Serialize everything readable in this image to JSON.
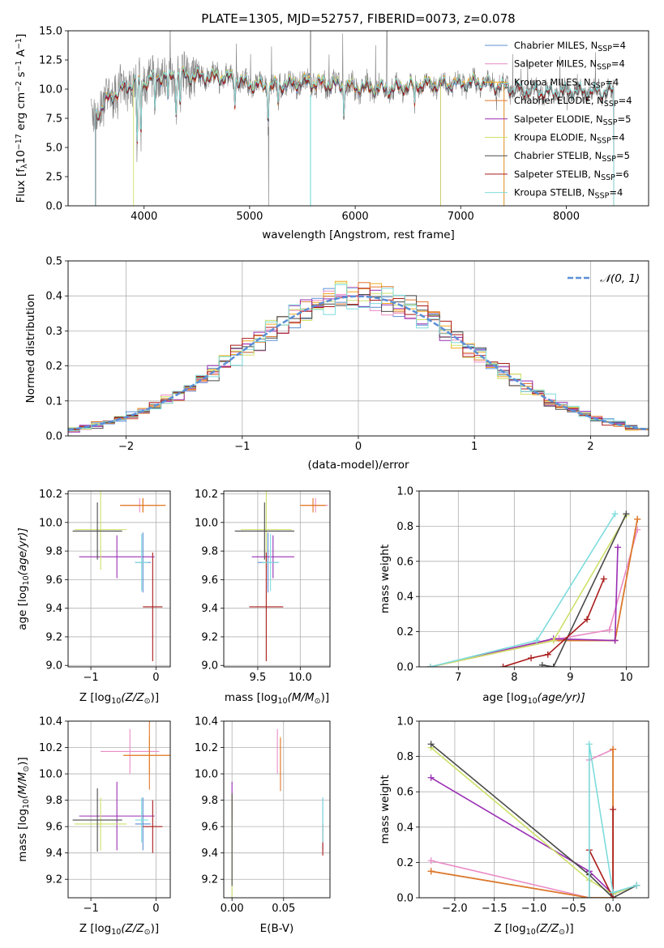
{
  "colors": {
    "Chabrier MILES": "#5b8fd6",
    "Salpeter MILES": "#e98cc6",
    "Kroupa MILES": "#f2a81d",
    "Chabrier ELODIE": "#e0772c",
    "Salpeter ELODIE": "#9a2fb4",
    "Kroupa ELODIE": "#cfe06a",
    "Chabrier STELIB": "#4a4a4a",
    "Salpeter STELIB": "#aa1a1a",
    "Kroupa STELIB": "#7fdcdc",
    "Normal": "#5b8fd6",
    "observed": "#808080"
  },
  "chart_data": [
    {
      "id": "spectrum",
      "type": "line",
      "title": "PLATE=1305, MJD=52757, FIBERID=0073, z=0.078",
      "xlabel": "wavelength [Angstrom, rest frame]",
      "ylabel_main": "Flux [f",
      "ylabel_sub": "λ",
      "ylabel_rest1": "10",
      "ylabel_sup1": "−17",
      "ylabel_rest2": " erg cm",
      "ylabel_sup2": "−2",
      "ylabel_rest3": " s",
      "ylabel_sup3": "−1",
      "ylabel_rest4": " A",
      "ylabel_sup4": "−1",
      "ylabel_end": "]",
      "xlim": [
        3280,
        8780
      ],
      "ylim": [
        0,
        15
      ],
      "xticks": [
        "4000",
        "5000",
        "6000",
        "7000",
        "8000"
      ],
      "xtick_values": [
        4000,
        5000,
        6000,
        7000,
        8000
      ],
      "yticks": [
        "0.0",
        "2.5",
        "5.0",
        "7.5",
        "10.0",
        "12.5",
        "15.0"
      ],
      "ytick_values": [
        0,
        2.5,
        5,
        7.5,
        10,
        12.5,
        15
      ],
      "legend": [
        {
          "name": "Chabrier MILES",
          "n": "4"
        },
        {
          "name": "Salpeter MILES",
          "n": "4"
        },
        {
          "name": "Kroupa MILES",
          "n": "4"
        },
        {
          "name": "Chabrier ELODIE",
          "n": "4"
        },
        {
          "name": "Salpeter ELODIE",
          "n": "5"
        },
        {
          "name": "Kroupa ELODIE",
          "n": "4"
        },
        {
          "name": "Chabrier STELIB",
          "n": "5"
        },
        {
          "name": "Salpeter STELIB",
          "n": "6"
        },
        {
          "name": "Kroupa STELIB",
          "n": "4"
        }
      ],
      "legend_sub": "SSP",
      "legend_prefix": "N",
      "continuum": [
        [
          3500,
          7.9
        ],
        [
          3650,
          9.2
        ],
        [
          3750,
          9.7
        ],
        [
          3900,
          10.6
        ],
        [
          4000,
          10.5
        ],
        [
          4100,
          11.0
        ],
        [
          4300,
          11.2
        ],
        [
          4500,
          11.1
        ],
        [
          4800,
          11.0
        ],
        [
          5000,
          10.4
        ],
        [
          5200,
          10.2
        ],
        [
          5500,
          10.6
        ],
        [
          5800,
          10.4
        ],
        [
          6000,
          10.2
        ],
        [
          6300,
          10.0
        ],
        [
          6600,
          10.4
        ],
        [
          6900,
          10.4
        ],
        [
          7200,
          10.6
        ],
        [
          7500,
          10.0
        ],
        [
          7800,
          9.7
        ],
        [
          8100,
          9.8
        ],
        [
          8450,
          9.8
        ]
      ]
    },
    {
      "id": "residuals",
      "type": "histogram",
      "xlabel": "(data-model)/error",
      "ylabel": "Normed distribution",
      "xlim": [
        -2.5,
        2.5
      ],
      "ylim": [
        0,
        0.5
      ],
      "xticks": [
        "−2",
        "−1",
        "0",
        "1",
        "2"
      ],
      "xtick_values": [
        -2,
        -1,
        0,
        1,
        2
      ],
      "yticks": [
        "0.0",
        "0.1",
        "0.2",
        "0.3",
        "0.4",
        "0.5"
      ],
      "ytick_values": [
        0,
        0.1,
        0.2,
        0.3,
        0.4,
        0.5
      ],
      "bin_width": 0.1,
      "legend": "𝒩(0, 1)"
    },
    {
      "id": "age_vs_Z",
      "type": "scatter",
      "xlabel": "Z [log",
      "xlabel_sub": "10",
      "xlabel_rest": "(Z/Z",
      "xlabel_sub2": "⊙",
      "xlabel_end": ")]",
      "ylabel": "age  [log",
      "ylabel_sub": "10",
      "ylabel_rest": "(age/yr)]",
      "xlim": [
        -1.35,
        0.22
      ],
      "ylim": [
        8.99,
        10.22
      ],
      "xticks": [
        "−1",
        "0"
      ],
      "xtick_values": [
        -1,
        0
      ],
      "yticks": [
        "9.0",
        "9.2",
        "9.4",
        "9.6",
        "9.8",
        "10.0",
        "10.2"
      ],
      "ytick_values": [
        9.0,
        9.2,
        9.4,
        9.6,
        9.8,
        10.0,
        10.2
      ],
      "points": [
        {
          "s": "Chabrier MILES",
          "x": -0.2,
          "y": 9.72,
          "xe": 0.12,
          "ye": 0.21
        },
        {
          "s": "Salpeter MILES",
          "x": -0.25,
          "y": 10.12,
          "xe": 0.3,
          "ye": 0.05
        },
        {
          "s": "Kroupa MILES",
          "x": -0.2,
          "y": 10.12,
          "xe": 0.35,
          "ye": 0.05
        },
        {
          "s": "Chabrier ELODIE",
          "x": -0.2,
          "y": 10.12,
          "xe": 0.35,
          "ye": 0.05
        },
        {
          "s": "Salpeter ELODIE",
          "x": -0.6,
          "y": 9.76,
          "xe": 0.58,
          "ye": 0.15
        },
        {
          "s": "Kroupa ELODIE",
          "x": -0.85,
          "y": 9.95,
          "xe": 0.4,
          "ye": 0.28
        },
        {
          "s": "Chabrier STELIB",
          "x": -0.9,
          "y": 9.94,
          "xe": 0.38,
          "ye": 0.2
        },
        {
          "s": "Salpeter STELIB",
          "x": -0.05,
          "y": 9.41,
          "xe": 0.15,
          "ye": 0.38
        },
        {
          "s": "Kroupa STELIB",
          "x": -0.22,
          "y": 9.72,
          "xe": 0.1,
          "ye": 0.2
        }
      ]
    },
    {
      "id": "age_vs_mass",
      "type": "scatter",
      "xlabel": "mass [log",
      "xlabel_sub": "10",
      "xlabel_rest": "(M/M",
      "xlabel_sub2": "⊙",
      "xlabel_end": ")]",
      "xlim": [
        9.1,
        10.35
      ],
      "ylim": [
        8.99,
        10.22
      ],
      "xticks": [
        "9.5",
        "10.0"
      ],
      "xtick_values": [
        9.5,
        10.0
      ],
      "yticks": [
        "9.0",
        "9.2",
        "9.4",
        "9.6",
        "9.8",
        "10.0",
        "10.2"
      ],
      "ytick_values": [
        9.0,
        9.2,
        9.4,
        9.6,
        9.8,
        10.0,
        10.2
      ],
      "points": [
        {
          "s": "Chabrier MILES",
          "x": 9.62,
          "y": 9.72,
          "xe": 0.12,
          "ye": 0.21
        },
        {
          "s": "Salpeter MILES",
          "x": 10.18,
          "y": 10.12,
          "xe": 0.15,
          "ye": 0.05
        },
        {
          "s": "Kroupa MILES",
          "x": 10.15,
          "y": 10.12,
          "xe": 0.15,
          "ye": 0.05
        },
        {
          "s": "Chabrier ELODIE",
          "x": 10.15,
          "y": 10.12,
          "xe": 0.15,
          "ye": 0.05
        },
        {
          "s": "Salpeter ELODIE",
          "x": 9.68,
          "y": 9.76,
          "xe": 0.25,
          "ye": 0.15
        },
        {
          "s": "Kroupa ELODIE",
          "x": 9.6,
          "y": 9.95,
          "xe": 0.3,
          "ye": 0.28
        },
        {
          "s": "Chabrier STELIB",
          "x": 9.58,
          "y": 9.94,
          "xe": 0.35,
          "ye": 0.2
        },
        {
          "s": "Salpeter STELIB",
          "x": 9.6,
          "y": 9.41,
          "xe": 0.2,
          "ye": 0.38
        },
        {
          "s": "Kroupa STELIB",
          "x": 9.65,
          "y": 9.72,
          "xe": 0.1,
          "ye": 0.2
        }
      ]
    },
    {
      "id": "massweight_vs_age",
      "type": "line",
      "xlabel": "age  [log",
      "xlabel_sub": "10",
      "xlabel_rest": "(age/yr)]",
      "ylabel": "mass weight",
      "xlim": [
        6.3,
        10.4
      ],
      "ylim": [
        0,
        1
      ],
      "xticks": [
        "7",
        "8",
        "9",
        "10"
      ],
      "xtick_values": [
        7,
        8,
        9,
        10
      ],
      "yticks": [
        "0.0",
        "0.2",
        "0.4",
        "0.6",
        "0.8",
        "1.0"
      ],
      "ytick_values": [
        0,
        0.2,
        0.4,
        0.6,
        0.8,
        1.0
      ],
      "series": [
        {
          "name": "Chabrier MILES",
          "x": [
            6.5,
            8.7,
            9.8,
            10.2
          ],
          "y": [
            0.0,
            0.15,
            0.15,
            0.84
          ]
        },
        {
          "name": "Salpeter MILES",
          "x": [
            6.5,
            8.8,
            9.7,
            10.2
          ],
          "y": [
            0.0,
            0.16,
            0.21,
            0.78
          ]
        },
        {
          "name": "Kroupa MILES",
          "x": [
            6.5,
            8.7,
            9.8,
            10.2
          ],
          "y": [
            0.0,
            0.15,
            0.15,
            0.84
          ]
        },
        {
          "name": "Chabrier ELODIE",
          "x": [
            6.5,
            8.7,
            9.8,
            10.2
          ],
          "y": [
            0.0,
            0.15,
            0.15,
            0.84
          ]
        },
        {
          "name": "Salpeter ELODIE",
          "x": [
            6.5,
            8.7,
            9.8,
            9.85
          ],
          "y": [
            0.0,
            0.16,
            0.15,
            0.68
          ]
        },
        {
          "name": "Kroupa ELODIE",
          "x": [
            6.5,
            8.7,
            10.0
          ],
          "y": [
            0.0,
            0.15,
            0.86
          ]
        },
        {
          "name": "Chabrier STELIB",
          "x": [
            8.5,
            8.7,
            10.0
          ],
          "y": [
            0.01,
            0.0,
            0.87
          ]
        },
        {
          "name": "Salpeter STELIB",
          "x": [
            7.8,
            8.3,
            8.6,
            9.3,
            9.6
          ],
          "y": [
            0.0,
            0.05,
            0.07,
            0.27,
            0.5
          ]
        },
        {
          "name": "Kroupa STELIB",
          "x": [
            6.5,
            8.4,
            9.8
          ],
          "y": [
            0.0,
            0.15,
            0.87
          ]
        }
      ]
    },
    {
      "id": "mass_vs_Z",
      "type": "scatter",
      "xlabel": "Z [log",
      "xlabel_sub": "10",
      "xlabel_rest": "(Z/Z",
      "xlabel_sub2": "⊙",
      "xlabel_end": ")]",
      "ylabel": "mass [log",
      "ylabel_sub": "10",
      "ylabel_rest": "(M/M",
      "ylabel_sub2": "⊙",
      "ylabel_end": ")]",
      "xlim": [
        -1.35,
        0.22
      ],
      "ylim": [
        9.06,
        10.4
      ],
      "xticks": [
        "−1",
        "0"
      ],
      "xtick_values": [
        -1,
        0
      ],
      "yticks": [
        "9.2",
        "9.4",
        "9.6",
        "9.8",
        "10.0",
        "10.2",
        "10.4"
      ],
      "ytick_values": [
        9.2,
        9.4,
        9.6,
        9.8,
        10.0,
        10.2,
        10.4
      ],
      "points": [
        {
          "s": "Chabrier MILES",
          "x": -0.2,
          "y": 9.62,
          "xe": 0.12,
          "ye": 0.2
        },
        {
          "s": "Salpeter MILES",
          "x": -0.4,
          "y": 10.17,
          "xe": 0.45,
          "ye": 0.17
        },
        {
          "s": "Kroupa MILES",
          "x": -0.1,
          "y": 10.14,
          "xe": 0.4,
          "ye": 0.14
        },
        {
          "s": "Chabrier ELODIE",
          "x": -0.1,
          "y": 10.14,
          "xe": 0.4,
          "ye": 0.26
        },
        {
          "s": "Salpeter ELODIE",
          "x": -0.6,
          "y": 9.68,
          "xe": 0.58,
          "ye": 0.26
        },
        {
          "s": "Kroupa ELODIE",
          "x": -0.85,
          "y": 9.62,
          "xe": 0.4,
          "ye": 0.2
        },
        {
          "s": "Chabrier STELIB",
          "x": -0.9,
          "y": 9.65,
          "xe": 0.38,
          "ye": 0.24
        },
        {
          "s": "Salpeter STELIB",
          "x": -0.05,
          "y": 9.6,
          "xe": 0.15,
          "ye": 0.2
        },
        {
          "s": "Kroupa STELIB",
          "x": -0.22,
          "y": 9.65,
          "xe": 0.1,
          "ye": 0.17
        }
      ]
    },
    {
      "id": "mass_vs_ebv",
      "type": "scatter",
      "xlabel": "E(B-V)",
      "xlim": [
        -0.008,
        0.095
      ],
      "ylim": [
        9.06,
        10.4
      ],
      "xticks": [
        "0.00",
        "0.05"
      ],
      "xtick_values": [
        0,
        0.05
      ],
      "yticks": [
        "9.2",
        "9.4",
        "9.6",
        "9.8",
        "10.0",
        "10.2",
        "10.4"
      ],
      "ytick_values": [
        9.2,
        9.4,
        9.6,
        9.8,
        10.0,
        10.2,
        10.4
      ],
      "points": [
        {
          "s": "Chabrier MILES",
          "x": 0.088,
          "y": 9.62,
          "ye": 0.2
        },
        {
          "s": "Salpeter MILES",
          "x": 0.044,
          "y": 10.17,
          "ye": 0.17
        },
        {
          "s": "Kroupa MILES",
          "x": 0.047,
          "y": 10.14,
          "ye": 0.14
        },
        {
          "s": "Chabrier ELODIE",
          "x": 0.047,
          "y": 10.07,
          "ye": 0.2
        },
        {
          "s": "Salpeter ELODIE",
          "x": 0.0,
          "y": 9.8,
          "ye": 0.14
        },
        {
          "s": "Kroupa ELODIE",
          "x": 0.0,
          "y": 9.45,
          "ye": 0.4
        },
        {
          "s": "Chabrier STELIB",
          "x": 0.0,
          "y": 9.5,
          "ye": 0.35
        },
        {
          "s": "Salpeter STELIB",
          "x": 0.088,
          "y": 9.5,
          "ye": 0.12
        },
        {
          "s": "Kroupa STELIB",
          "x": 0.088,
          "y": 9.65,
          "ye": 0.17
        }
      ]
    },
    {
      "id": "massweight_vs_Z",
      "type": "line",
      "xlabel": "Z [log",
      "xlabel_sub": "10",
      "xlabel_rest": "(Z/Z",
      "xlabel_sub2": "⊙",
      "xlabel_end": ")]",
      "ylabel": "mass weight",
      "xlim": [
        -2.45,
        0.45
      ],
      "ylim": [
        0,
        1
      ],
      "xticks": [
        "−2.0",
        "−1.5",
        "−1.0",
        "−0.5",
        "0.0"
      ],
      "xtick_values": [
        -2,
        -1.5,
        -1,
        -0.5,
        0
      ],
      "yticks": [
        "0.0",
        "0.2",
        "0.4",
        "0.6",
        "0.8",
        "1.0"
      ],
      "ytick_values": [
        0,
        0.2,
        0.4,
        0.6,
        0.8,
        1.0
      ],
      "series": [
        {
          "name": "Chabrier MILES",
          "x": [
            -2.3,
            -0.3,
            0.0,
            0.0
          ],
          "y": [
            0.15,
            0.0,
            0.0,
            0.84
          ]
        },
        {
          "name": "Salpeter MILES",
          "x": [
            -2.3,
            -0.3,
            -0.3,
            0.0
          ],
          "y": [
            0.21,
            0.0,
            0.78,
            0.84
          ]
        },
        {
          "name": "Kroupa MILES",
          "x": [
            -2.3,
            -0.3,
            0.0,
            0.0
          ],
          "y": [
            0.15,
            0.0,
            0.0,
            0.84
          ]
        },
        {
          "name": "Chabrier ELODIE",
          "x": [
            -2.3,
            -0.3,
            0.0,
            0.0
          ],
          "y": [
            0.15,
            0.0,
            0.0,
            0.84
          ]
        },
        {
          "name": "Salpeter ELODIE",
          "x": [
            -2.3,
            -0.3,
            0.0,
            0.3
          ],
          "y": [
            0.68,
            0.15,
            0.02,
            0.07
          ]
        },
        {
          "name": "Kroupa ELODIE",
          "x": [
            -2.3,
            -0.3,
            0.0,
            0.3
          ],
          "y": [
            0.85,
            0.1,
            0.02,
            0.07
          ]
        },
        {
          "name": "Chabrier STELIB",
          "x": [
            -2.3,
            -0.3,
            0.0,
            0.3
          ],
          "y": [
            0.87,
            0.13,
            0.0,
            0.07
          ]
        },
        {
          "name": "Salpeter STELIB",
          "x": [
            -0.3,
            -0.3,
            0.0,
            0.0,
            0.0
          ],
          "y": [
            0.0,
            0.27,
            0.0,
            0.5,
            0.0
          ]
        },
        {
          "name": "Kroupa STELIB",
          "x": [
            -0.3,
            -0.3,
            0.0,
            0.3
          ],
          "y": [
            0.0,
            0.87,
            0.03,
            0.07
          ]
        }
      ]
    }
  ]
}
